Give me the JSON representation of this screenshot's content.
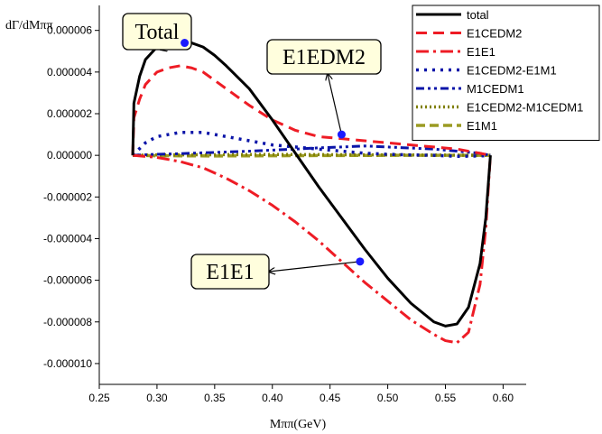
{
  "chart_data": {
    "type": "line",
    "title": "",
    "xlabel": "Mππ(GeV)",
    "ylabel": "dΓ/dMππ",
    "xlim": [
      0.25,
      0.62
    ],
    "ylim": [
      -1.1e-05,
      7.2e-06
    ],
    "x_ticks": [
      0.25,
      0.3,
      0.35,
      0.4,
      0.45,
      0.5,
      0.55,
      0.6
    ],
    "x_tick_labels": [
      "0.25",
      "0.30",
      "0.35",
      "0.40",
      "0.45",
      "0.50",
      "0.55",
      "0.60"
    ],
    "y_ticks": [
      6e-06,
      4e-06,
      2e-06,
      0,
      -2e-06,
      -4e-06,
      -6e-06,
      -8e-06,
      -1e-05
    ],
    "y_tick_labels": [
      "0.000006",
      "0.000004",
      "0.000002",
      "0.000000",
      "-0.000002",
      "-0.000004",
      "-0.000006",
      "-0.000008",
      "-0.000010"
    ],
    "legend_position": "top-right",
    "grid": false,
    "series": [
      {
        "name": "total",
        "color": "#000000",
        "style": "solid",
        "x": [
          0.279,
          0.28,
          0.285,
          0.29,
          0.3,
          0.31,
          0.32,
          0.33,
          0.34,
          0.35,
          0.36,
          0.38,
          0.4,
          0.42,
          0.44,
          0.46,
          0.48,
          0.5,
          0.52,
          0.54,
          0.55,
          0.56,
          0.57,
          0.58,
          0.585,
          0.589
        ],
        "y": [
          0,
          2.5e-06,
          3.8e-06,
          4.6e-06,
          5.2e-06,
          5.4e-06,
          5.5e-06,
          5.4e-06,
          5.2e-06,
          4.8e-06,
          4.3e-06,
          3.2e-06,
          1.7e-06,
          1e-07,
          -1.5e-06,
          -3e-06,
          -4.5e-06,
          -5.9e-06,
          -7.1e-06,
          -8e-06,
          -8.2e-06,
          -8.1e-06,
          -7.3e-06,
          -5.2e-06,
          -3e-06,
          0
        ]
      },
      {
        "name": "E1CEDM2",
        "color": "#ee1c25",
        "style": "dash",
        "x": [
          0.279,
          0.28,
          0.285,
          0.29,
          0.3,
          0.31,
          0.32,
          0.33,
          0.34,
          0.35,
          0.36,
          0.38,
          0.4,
          0.42,
          0.44,
          0.46,
          0.48,
          0.5,
          0.52,
          0.54,
          0.56,
          0.57,
          0.58,
          0.589
        ],
        "y": [
          0,
          1.8e-06,
          2.7e-06,
          3.4e-06,
          4e-06,
          4.2e-06,
          4.3e-06,
          4.2e-06,
          4e-06,
          3.6e-06,
          3.2e-06,
          2.4e-06,
          1.7e-06,
          1.2e-06,
          9e-07,
          8e-07,
          7e-07,
          6e-07,
          5e-07,
          4e-07,
          3e-07,
          2e-07,
          1e-07,
          0
        ]
      },
      {
        "name": "E1E1",
        "color": "#ee1c25",
        "style": "dashdot",
        "x": [
          0.279,
          0.3,
          0.32,
          0.34,
          0.36,
          0.38,
          0.4,
          0.42,
          0.44,
          0.46,
          0.48,
          0.5,
          0.52,
          0.54,
          0.55,
          0.56,
          0.57,
          0.58,
          0.585,
          0.589
        ],
        "y": [
          0,
          -1e-07,
          -3e-07,
          -6e-07,
          -1.1e-06,
          -1.7e-06,
          -2.4e-06,
          -3.2e-06,
          -4.1e-06,
          -5.1e-06,
          -6.1e-06,
          -7e-06,
          -7.9e-06,
          -8.6e-06,
          -8.9e-06,
          -9e-06,
          -8.5e-06,
          -6.2e-06,
          -3.5e-06,
          0
        ]
      },
      {
        "name": "E1CEDM2-E1M1",
        "color": "#0a14a8",
        "style": "dot",
        "x": [
          0.279,
          0.29,
          0.3,
          0.31,
          0.32,
          0.33,
          0.34,
          0.35,
          0.36,
          0.38,
          0.4,
          0.42,
          0.44,
          0.46,
          0.48,
          0.5,
          0.52,
          0.54,
          0.56,
          0.58,
          0.589
        ],
        "y": [
          0,
          6e-07,
          9e-07,
          1e-06,
          1.1e-06,
          1.1e-06,
          1.1e-06,
          1e-06,
          9e-07,
          7e-07,
          5e-07,
          4e-07,
          3e-07,
          2e-07,
          1e-07,
          5e-08,
          2e-08,
          0,
          -5e-08,
          -3e-08,
          0
        ]
      },
      {
        "name": "M1CEDM1",
        "color": "#0a14a8",
        "style": "dashdotdot",
        "x": [
          0.279,
          0.3,
          0.32,
          0.34,
          0.36,
          0.38,
          0.4,
          0.42,
          0.44,
          0.46,
          0.48,
          0.5,
          0.52,
          0.54,
          0.56,
          0.58,
          0.589
        ],
        "y": [
          0,
          5e-08,
          8e-08,
          1.2e-07,
          1.6e-07,
          2e-07,
          2.5e-07,
          3e-07,
          3.6e-07,
          4e-07,
          4.5e-07,
          4e-07,
          3.5e-07,
          3e-07,
          2e-07,
          1e-07,
          0
        ]
      },
      {
        "name": "E1CEDM2-M1CEDM1",
        "color": "#808000",
        "style": "shortdot",
        "x": [
          0.279,
          0.3,
          0.35,
          0.4,
          0.45,
          0.5,
          0.55,
          0.589
        ],
        "y": [
          0,
          2e-08,
          3e-08,
          4e-08,
          3e-08,
          2e-08,
          1e-08,
          0
        ]
      },
      {
        "name": "E1M1",
        "color": "#9b9b23",
        "style": "longdash",
        "x": [
          0.279,
          0.3,
          0.35,
          0.4,
          0.45,
          0.5,
          0.55,
          0.589
        ],
        "y": [
          0,
          -2e-08,
          -3e-08,
          -2e-08,
          -1e-08,
          0,
          0,
          0
        ]
      }
    ],
    "annotations": [
      {
        "text": "Total",
        "point": [
          0.324,
          5.4e-06
        ]
      },
      {
        "text": "E1EDM2",
        "point": [
          0.46,
          1e-06
        ]
      },
      {
        "text": "E1E1",
        "point": [
          0.476,
          -5.1e-06
        ]
      }
    ],
    "marker_color": "#1a1aff"
  }
}
